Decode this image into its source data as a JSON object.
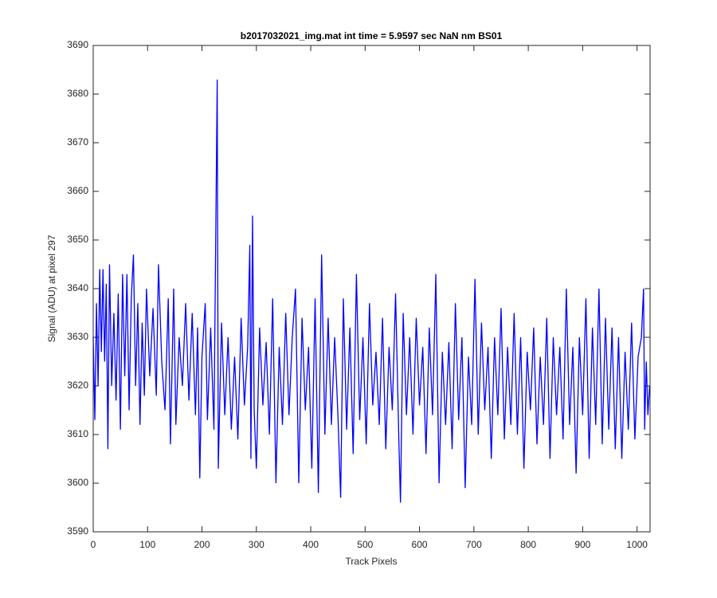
{
  "chart_data": {
    "type": "line",
    "title": "b2017032021_img.mat int time = 5.9597 sec  NaN nm BS01",
    "xlabel": "Track Pixels",
    "ylabel": "Signal (ADU) at pixel 297",
    "xlim": [
      0,
      1024
    ],
    "ylim": [
      3590,
      3690
    ],
    "xticks": [
      0,
      100,
      200,
      300,
      400,
      500,
      600,
      700,
      800,
      900,
      1000
    ],
    "yticks": [
      3590,
      3600,
      3610,
      3620,
      3630,
      3640,
      3650,
      3660,
      3670,
      3680,
      3690
    ],
    "grid": false,
    "x": [
      0,
      3,
      6,
      9,
      12,
      15,
      18,
      21,
      24,
      27,
      30,
      34,
      38,
      42,
      46,
      50,
      54,
      58,
      62,
      66,
      70,
      74,
      78,
      82,
      86,
      90,
      94,
      98,
      104,
      110,
      116,
      120,
      126,
      132,
      138,
      142,
      148,
      152,
      158,
      164,
      170,
      176,
      182,
      188,
      192,
      196,
      200,
      206,
      210,
      216,
      222,
      228,
      230,
      236,
      242,
      248,
      254,
      260,
      266,
      272,
      278,
      284,
      288,
      290,
      293,
      296,
      300,
      306,
      312,
      318,
      324,
      330,
      336,
      342,
      348,
      354,
      360,
      366,
      372,
      378,
      384,
      390,
      396,
      402,
      408,
      414,
      420,
      426,
      432,
      438,
      444,
      450,
      455,
      460,
      466,
      472,
      478,
      484,
      490,
      496,
      502,
      508,
      514,
      520,
      526,
      532,
      538,
      544,
      550,
      556,
      562,
      565,
      570,
      576,
      582,
      588,
      594,
      600,
      606,
      612,
      618,
      624,
      630,
      636,
      642,
      648,
      654,
      660,
      666,
      672,
      678,
      684,
      690,
      696,
      702,
      708,
      714,
      720,
      726,
      732,
      738,
      744,
      750,
      756,
      762,
      768,
      774,
      780,
      786,
      792,
      798,
      804,
      810,
      816,
      822,
      828,
      834,
      840,
      846,
      852,
      858,
      864,
      870,
      876,
      882,
      888,
      894,
      900,
      906,
      912,
      918,
      924,
      930,
      936,
      942,
      948,
      954,
      960,
      966,
      972,
      978,
      984,
      990,
      996,
      1002,
      1008,
      1012,
      1014,
      1017,
      1020,
      1023
    ],
    "series": [
      {
        "color": "#0000ff",
        "values": [
          3630,
          3613,
          3637,
          3620,
          3644,
          3627,
          3644,
          3625,
          3641,
          3607,
          3645,
          3620,
          3635,
          3617,
          3639,
          3611,
          3643,
          3622,
          3643,
          3615,
          3638,
          3647,
          3620,
          3637,
          3612,
          3633,
          3618,
          3640,
          3622,
          3636,
          3618,
          3645,
          3625,
          3615,
          3638,
          3608,
          3640,
          3612,
          3630,
          3620,
          3637,
          3617,
          3635,
          3614,
          3632,
          3601,
          3626,
          3637,
          3613,
          3632,
          3611,
          3683,
          3603,
          3633,
          3614,
          3630,
          3611,
          3626,
          3609,
          3634,
          3616,
          3628,
          3649,
          3605,
          3655,
          3615,
          3603,
          3632,
          3616,
          3629,
          3610,
          3638,
          3600,
          3628,
          3612,
          3635,
          3614,
          3630,
          3640,
          3600,
          3634,
          3615,
          3628,
          3603,
          3638,
          3598,
          3647,
          3610,
          3634,
          3612,
          3630,
          3614,
          3597,
          3638,
          3611,
          3632,
          3606,
          3643,
          3613,
          3630,
          3608,
          3637,
          3616,
          3627,
          3612,
          3634,
          3607,
          3628,
          3615,
          3639,
          3609,
          3596,
          3635,
          3614,
          3630,
          3610,
          3634,
          3616,
          3628,
          3606,
          3632,
          3614,
          3643,
          3600,
          3627,
          3612,
          3629,
          3607,
          3637,
          3613,
          3630,
          3599,
          3626,
          3612,
          3642,
          3610,
          3633,
          3615,
          3628,
          3605,
          3630,
          3614,
          3636,
          3609,
          3628,
          3612,
          3635,
          3610,
          3630,
          3603,
          3627,
          3615,
          3632,
          3608,
          3626,
          3612,
          3634,
          3605,
          3630,
          3614,
          3628,
          3609,
          3640,
          3612,
          3628,
          3602,
          3630,
          3614,
          3638,
          3605,
          3632,
          3612,
          3640,
          3608,
          3634,
          3611,
          3632,
          3607,
          3630,
          3605,
          3627,
          3611,
          3633,
          3609,
          3626,
          3630,
          3640,
          3611,
          3625,
          3614,
          3620
        ]
      }
    ]
  }
}
